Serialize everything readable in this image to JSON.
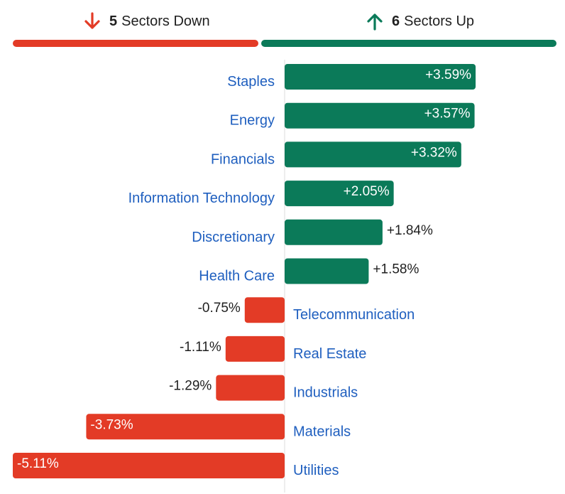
{
  "header": {
    "down": {
      "count": "5",
      "label": "Sectors Down",
      "icon": "arrow-down-icon"
    },
    "up": {
      "count": "6",
      "label": "Sectors Up",
      "icon": "arrow-up-icon"
    }
  },
  "colors": {
    "up": "#0b7a59",
    "down": "#e33b26",
    "label": "#1f5fbf",
    "text": "#1f1f1f",
    "axis": "#dddddd"
  },
  "chart_data": {
    "type": "bar",
    "orientation": "horizontal",
    "categories": [
      "Staples",
      "Energy",
      "Financials",
      "Information Technology",
      "Discretionary",
      "Health Care",
      "Telecommunication",
      "Real Estate",
      "Industrials",
      "Materials",
      "Utilities"
    ],
    "values": [
      3.59,
      3.57,
      3.32,
      2.05,
      1.84,
      1.58,
      -0.75,
      -1.11,
      -1.29,
      -3.73,
      -5.11
    ],
    "data_labels": [
      "+3.59%",
      "+3.57%",
      "+3.32%",
      "+2.05%",
      "+1.84%",
      "+1.58%",
      "-0.75%",
      "-1.11%",
      "-1.29%",
      "-3.73%",
      "-5.11%"
    ],
    "xlim": [
      -5.11,
      5.11
    ],
    "title": "",
    "xlabel": "",
    "ylabel": ""
  }
}
